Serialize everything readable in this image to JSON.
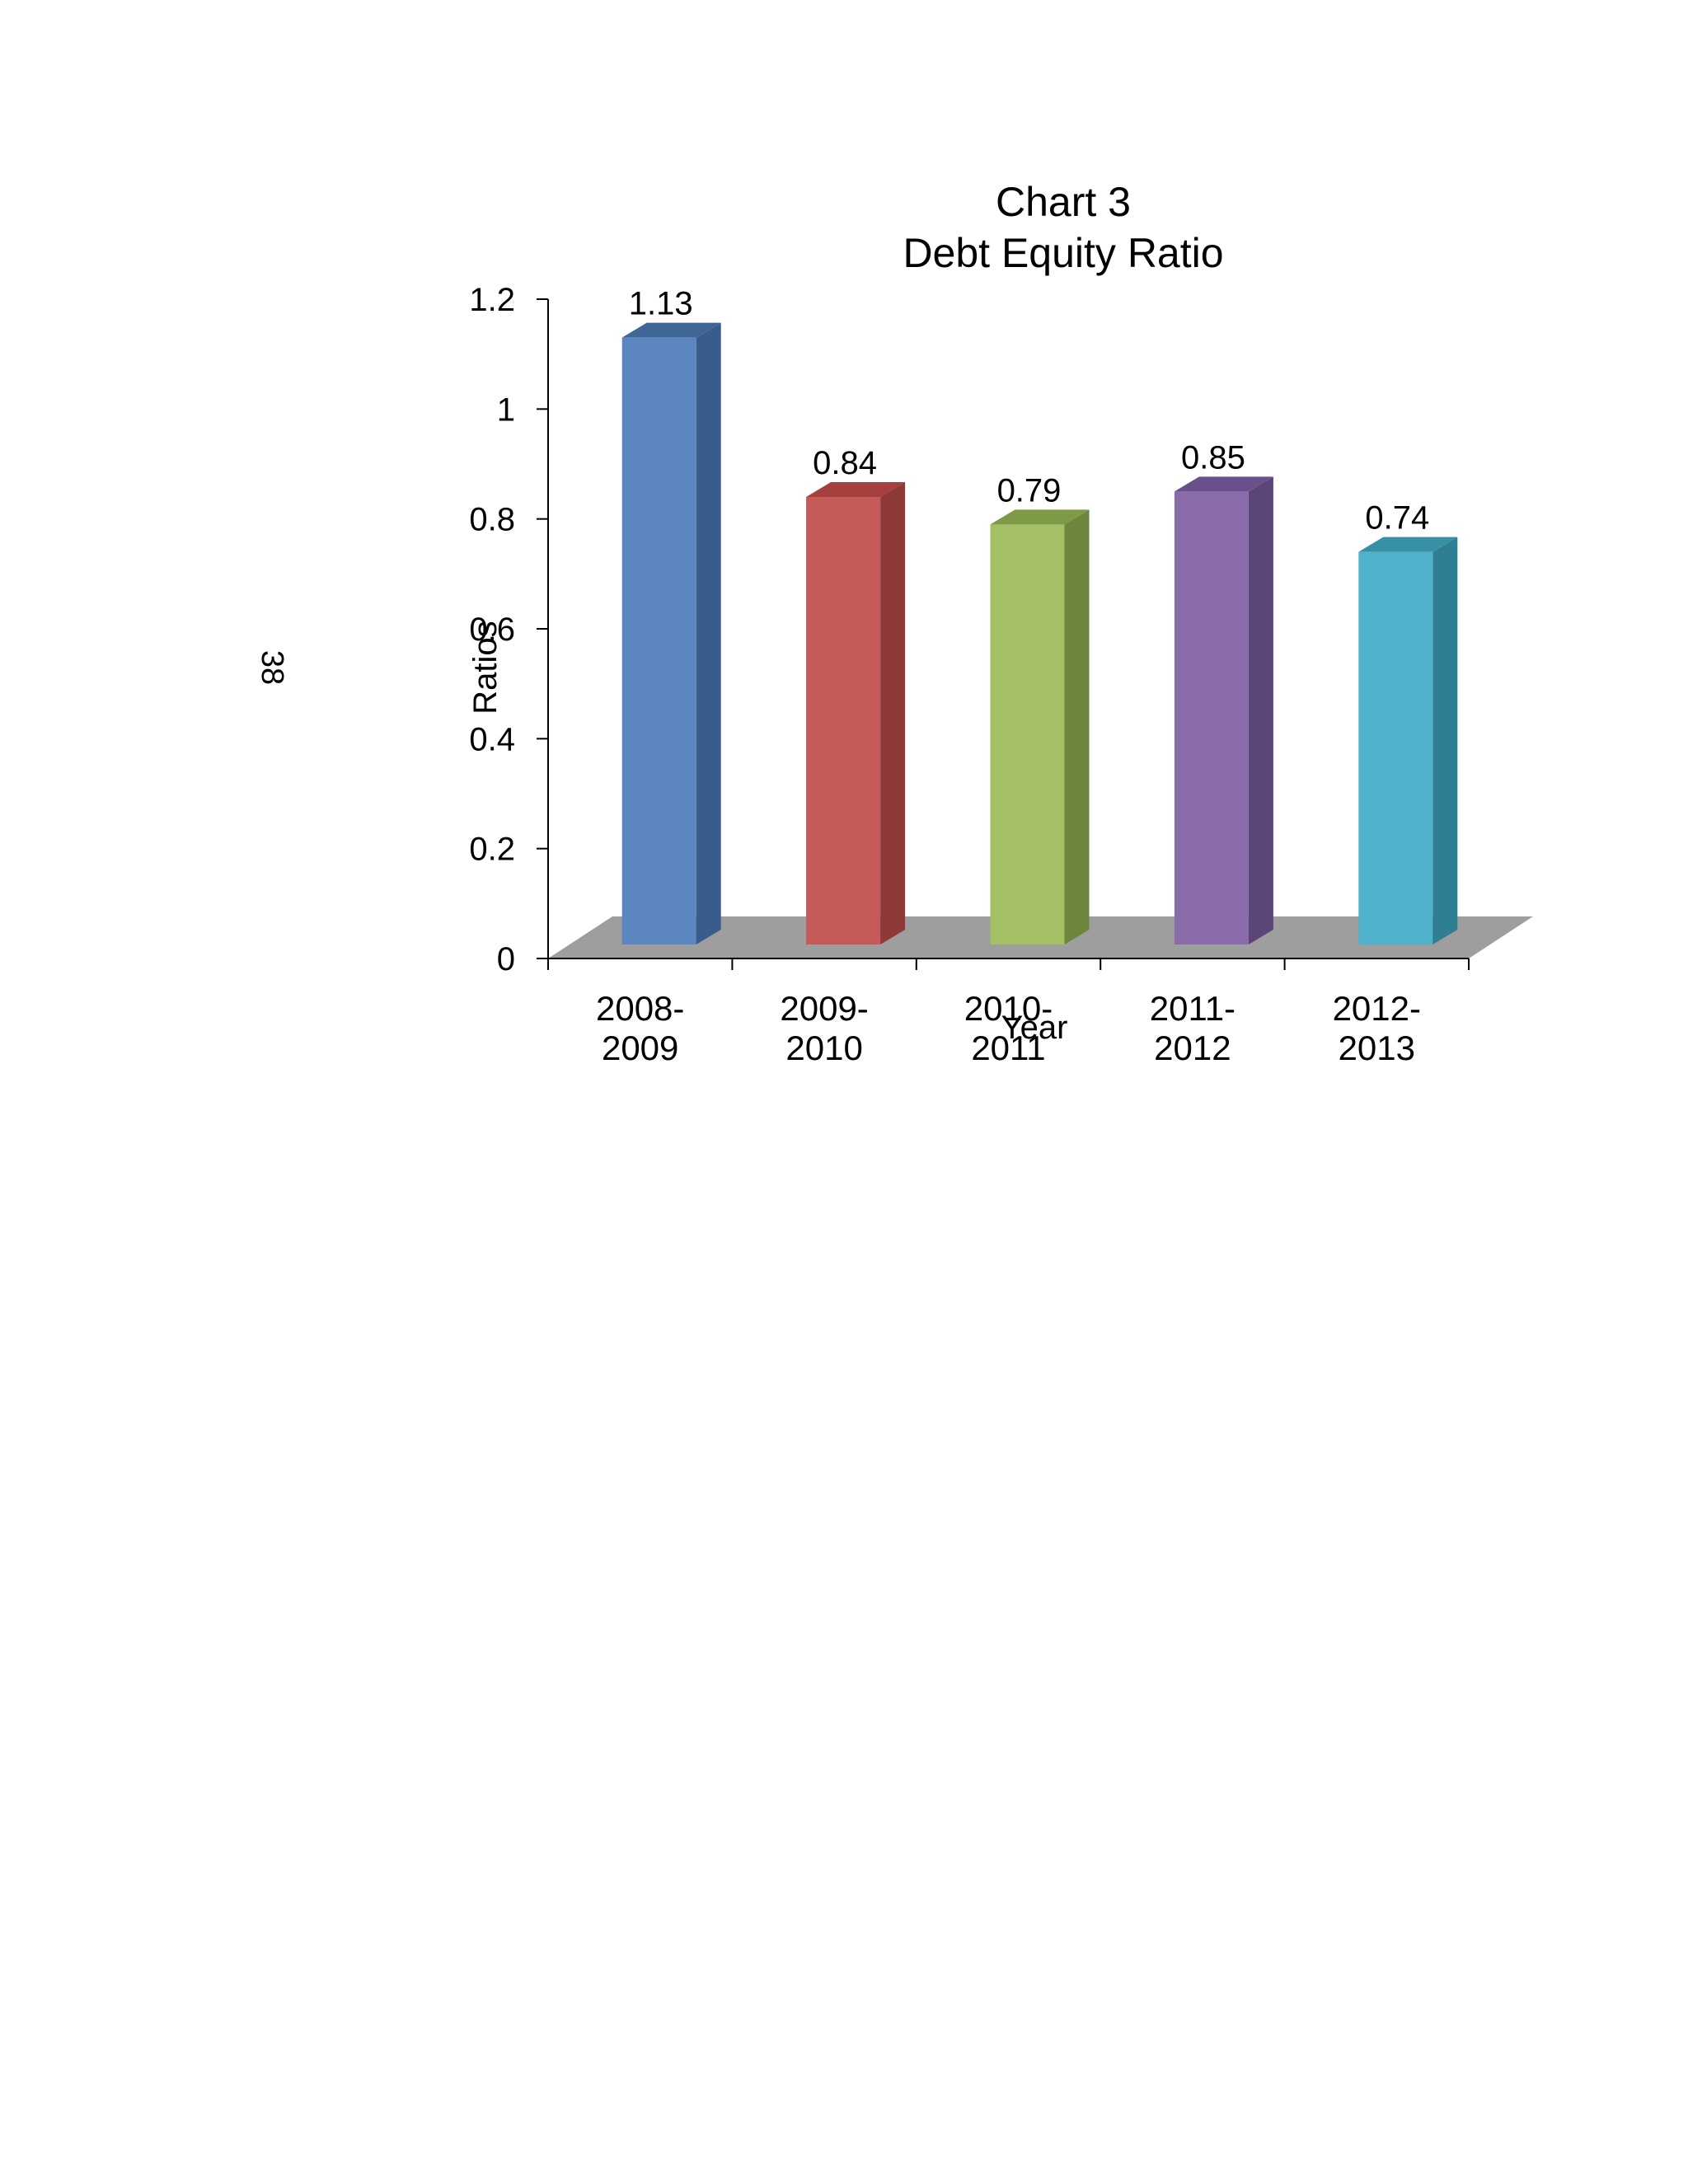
{
  "page_number": "38",
  "chart_data": {
    "type": "bar",
    "title_lines": [
      "Chart 3",
      "Debt Equity Ratio"
    ],
    "xlabel": "Year",
    "ylabel": "Ratios",
    "categories": [
      [
        "2008-",
        "2009"
      ],
      [
        "2009-",
        "2010"
      ],
      [
        "2010-",
        "2011"
      ],
      [
        "2011-",
        "2012"
      ],
      [
        "2012-",
        "2013"
      ]
    ],
    "values": [
      1.13,
      0.84,
      0.79,
      0.85,
      0.74
    ],
    "value_labels": [
      "1.13",
      "0.84",
      "0.79",
      "0.85",
      "0.74"
    ],
    "ylim": [
      0,
      1.2
    ],
    "yticks": [
      "0",
      "0.2",
      "0.4",
      "0.6",
      "0.8",
      "1",
      "1.2"
    ],
    "ytick_values": [
      0,
      0.2,
      0.4,
      0.6,
      0.8,
      1,
      1.2
    ],
    "grid": false,
    "legend": "none",
    "colors": [
      {
        "front": "#5b86c0",
        "side": "#395d8b",
        "top": "#3e6797"
      },
      {
        "front": "#c55a58",
        "side": "#8d3938",
        "top": "#a5403f"
      },
      {
        "front": "#a3c164",
        "side": "#6e853e",
        "top": "#7d9a46"
      },
      {
        "front": "#8a6cab",
        "side": "#5c4679",
        "top": "#6a508a"
      },
      {
        "front": "#4fb2ca",
        "side": "#2f7f93",
        "top": "#3890a6"
      }
    ],
    "floor_color": "#9e9e9e"
  }
}
